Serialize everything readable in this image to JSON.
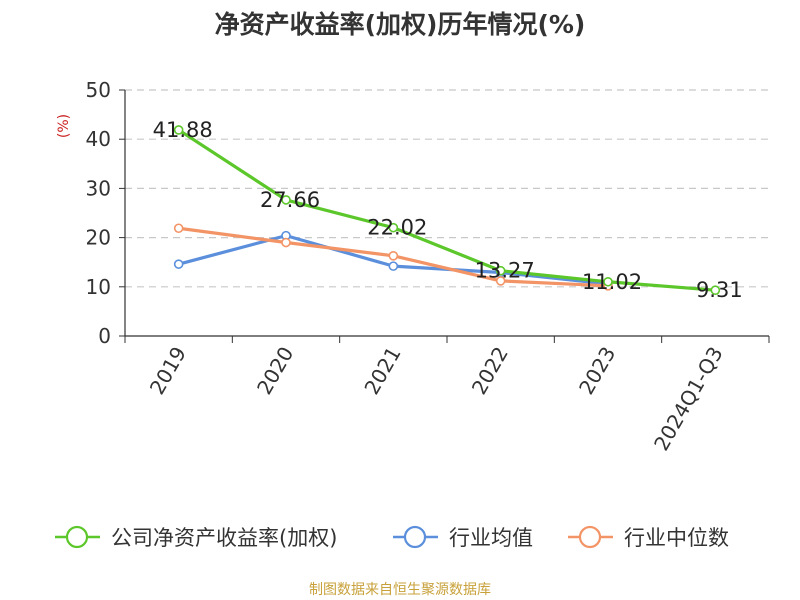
{
  "chart_data": {
    "type": "line",
    "title": "净资产收益率(加权)历年情况(%)",
    "ylabel": "(%)",
    "xlabel": "",
    "categories": [
      "2019",
      "2020",
      "2021",
      "2022",
      "2023",
      "2024Q1-Q3"
    ],
    "ylim": [
      0,
      50
    ],
    "yticks": [
      0,
      10,
      20,
      30,
      40,
      50
    ],
    "grid": true,
    "legend_position": "bottom",
    "series": [
      {
        "name": "公司净资产收益率(加权)",
        "color": "#5cc72a",
        "values": [
          41.88,
          27.66,
          22.02,
          13.27,
          11.02,
          9.31
        ],
        "data_labels": [
          "41.88",
          "27.66",
          "22.02",
          "13.27",
          "11.02",
          "9.31"
        ]
      },
      {
        "name": "行业均值",
        "color": "#5b8fdc",
        "values": [
          14.6,
          20.4,
          14.2,
          12.9,
          10.6,
          null
        ]
      },
      {
        "name": "行业中位数",
        "color": "#f39466",
        "values": [
          21.9,
          19.0,
          16.3,
          11.2,
          10.2,
          null
        ]
      }
    ]
  },
  "ylabel_color": "#cc2222",
  "source_text": "制图数据来自恒生聚源数据库",
  "source_color": "#c8a13a"
}
